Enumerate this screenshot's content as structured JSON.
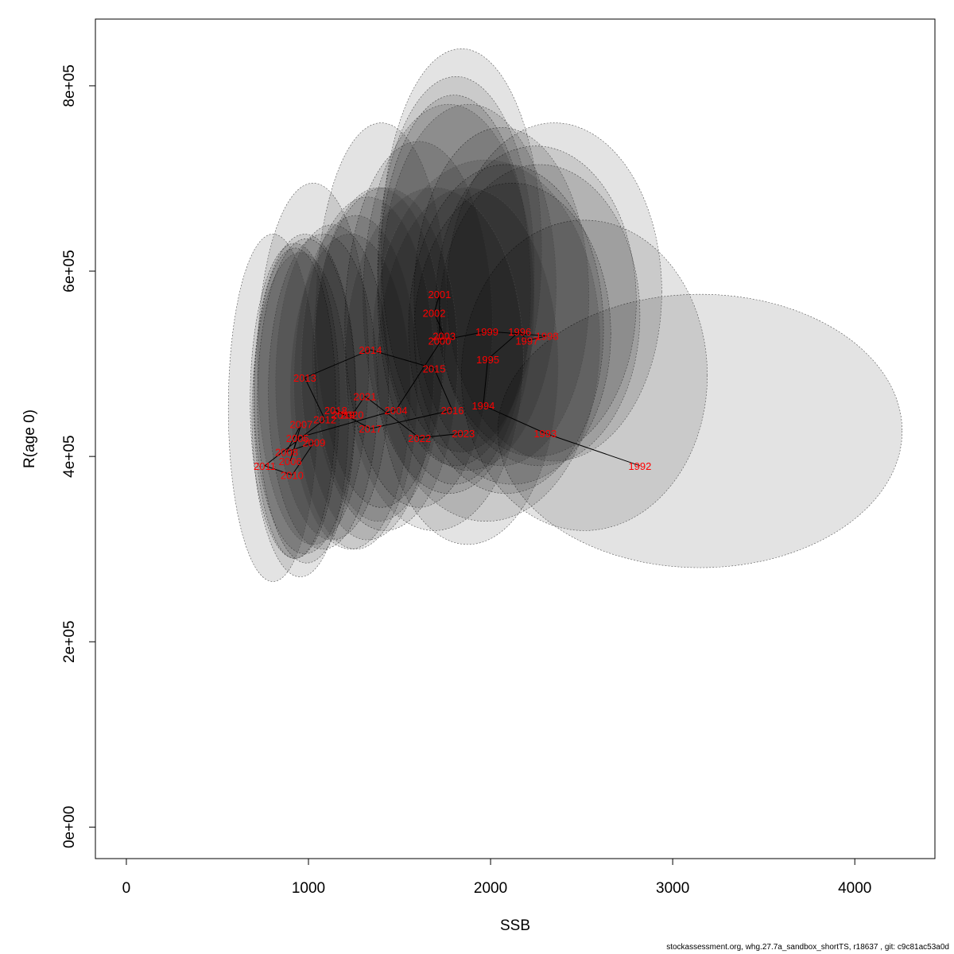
{
  "footer": "stockassessment.org, whg.27.7a_sandbox_shortTS, r18637 , git: c9c81ac53a0d",
  "colors": {
    "ellipse_fill": "#000000",
    "ellipse_stroke": "#555555",
    "label": "#ff0000",
    "trajectory": "#000000",
    "axis": "#000000"
  },
  "chart_data": {
    "type": "scatter",
    "xlabel": "SSB",
    "ylabel": "R(age 0)",
    "xlim": [
      -170,
      4440
    ],
    "ylim": [
      -34000,
      872000
    ],
    "x_ticks": [
      0,
      1000,
      2000,
      3000,
      4000
    ],
    "x_tick_labels": [
      "0",
      "1000",
      "2000",
      "3000",
      "4000"
    ],
    "y_ticks": [
      0,
      200000,
      400000,
      600000,
      800000
    ],
    "y_tick_labels": [
      "0e+00",
      "2e+05",
      "4e+05",
      "6e+05",
      "8e+05"
    ],
    "grid": false,
    "legend": "none",
    "points": [
      {
        "year": "1992",
        "ssb": 2820,
        "r": 390000,
        "ssb_ci": [
          2040,
          4260
        ],
        "r_ci": [
          280000,
          575000
        ]
      },
      {
        "year": "1993",
        "ssb": 2300,
        "r": 425000,
        "ssb_ci": [
          1840,
          3190
        ],
        "r_ci": [
          320000,
          655000
        ]
      },
      {
        "year": "1994",
        "ssb": 1960,
        "r": 455000,
        "ssb_ci": [
          1550,
          2620
        ],
        "r_ci": [
          360000,
          715000
        ]
      },
      {
        "year": "1995",
        "ssb": 1985,
        "r": 505000,
        "ssb_ci": [
          1580,
          2660
        ],
        "r_ci": [
          370000,
          695000
        ]
      },
      {
        "year": "1996",
        "ssb": 2160,
        "r": 535000,
        "ssb_ci": [
          1700,
          2800
        ],
        "r_ci": [
          400000,
          735000
        ]
      },
      {
        "year": "1997",
        "ssb": 2200,
        "r": 525000,
        "ssb_ci": [
          1720,
          2820
        ],
        "r_ci": [
          390000,
          715000
        ]
      },
      {
        "year": "1998",
        "ssb": 2310,
        "r": 530000,
        "ssb_ci": [
          1760,
          2940
        ],
        "r_ci": [
          395000,
          760000
        ]
      },
      {
        "year": "1999",
        "ssb": 1980,
        "r": 535000,
        "ssb_ci": [
          1580,
          2540
        ],
        "r_ci": [
          390000,
          755000
        ]
      },
      {
        "year": "2000",
        "ssb": 1720,
        "r": 525000,
        "ssb_ci": [
          1380,
          2220
        ],
        "r_ci": [
          370000,
          790000
        ]
      },
      {
        "year": "2001",
        "ssb": 1720,
        "r": 575000,
        "ssb_ci": [
          1400,
          2280
        ],
        "r_ci": [
          405000,
          840000
        ]
      },
      {
        "year": "2002",
        "ssb": 1690,
        "r": 555000,
        "ssb_ci": [
          1380,
          2240
        ],
        "r_ci": [
          390000,
          810000
        ]
      },
      {
        "year": "2003",
        "ssb": 1745,
        "r": 530000,
        "ssb_ci": [
          1400,
          2360
        ],
        "r_ci": [
          385000,
          780000
        ]
      },
      {
        "year": "2004",
        "ssb": 1480,
        "r": 450000,
        "ssb_ci": [
          1200,
          2010
        ],
        "r_ci": [
          345000,
          740000
        ]
      },
      {
        "year": "2005",
        "ssb": 940,
        "r": 420000,
        "ssb_ci": [
          720,
          1260
        ],
        "r_ci": [
          285000,
          635000
        ]
      },
      {
        "year": "2006",
        "ssb": 900,
        "r": 395000,
        "ssb_ci": [
          700,
          1150
        ],
        "r_ci": [
          290000,
          625000
        ]
      },
      {
        "year": "2007",
        "ssb": 960,
        "r": 435000,
        "ssb_ci": [
          700,
          1260
        ],
        "r_ci": [
          295000,
          640000
        ]
      },
      {
        "year": "2008",
        "ssb": 880,
        "r": 405000,
        "ssb_ci": [
          680,
          1170
        ],
        "r_ci": [
          290000,
          630000
        ]
      },
      {
        "year": "2009",
        "ssb": 1030,
        "r": 415000,
        "ssb_ci": [
          780,
          1380
        ],
        "r_ci": [
          300000,
          640000
        ]
      },
      {
        "year": "2010",
        "ssb": 910,
        "r": 380000,
        "ssb_ci": [
          690,
          1220
        ],
        "r_ci": [
          270000,
          620000
        ]
      },
      {
        "year": "2011",
        "ssb": 760,
        "r": 390000,
        "ssb_ci": [
          560,
          1050
        ],
        "r_ci": [
          265000,
          640000
        ]
      },
      {
        "year": "2012",
        "ssb": 1090,
        "r": 440000,
        "ssb_ci": [
          820,
          1440
        ],
        "r_ci": [
          310000,
          650000
        ]
      },
      {
        "year": "2013",
        "ssb": 980,
        "r": 485000,
        "ssb_ci": [
          720,
          1330
        ],
        "r_ci": [
          305000,
          695000
        ]
      },
      {
        "year": "2014",
        "ssb": 1340,
        "r": 515000,
        "ssb_ci": [
          1040,
          1760
        ],
        "r_ci": [
          345000,
          760000
        ]
      },
      {
        "year": "2015",
        "ssb": 1690,
        "r": 495000,
        "ssb_ci": [
          1300,
          2240
        ],
        "r_ci": [
          360000,
          780000
        ]
      },
      {
        "year": "2016",
        "ssb": 1790,
        "r": 450000,
        "ssb_ci": [
          1380,
          2370
        ],
        "r_ci": [
          305000,
          690000
        ]
      },
      {
        "year": "2017",
        "ssb": 1340,
        "r": 430000,
        "ssb_ci": [
          1020,
          1820
        ],
        "r_ci": [
          320000,
          690000
        ]
      },
      {
        "year": "2018",
        "ssb": 1150,
        "r": 450000,
        "ssb_ci": [
          900,
          1560
        ],
        "r_ci": [
          300000,
          640000
        ]
      },
      {
        "year": "2019",
        "ssb": 1190,
        "r": 445000,
        "ssb_ci": [
          920,
          1600
        ],
        "r_ci": [
          300000,
          660000
        ]
      },
      {
        "year": "2020",
        "ssb": 1240,
        "r": 445000,
        "ssb_ci": [
          960,
          1690
        ],
        "r_ci": [
          310000,
          680000
        ]
      },
      {
        "year": "2021",
        "ssb": 1310,
        "r": 465000,
        "ssb_ci": [
          1030,
          1740
        ],
        "r_ci": [
          330000,
          690000
        ]
      },
      {
        "year": "2022",
        "ssb": 1610,
        "r": 420000,
        "ssb_ci": [
          1200,
          2180
        ],
        "r_ci": [
          320000,
          690000
        ]
      },
      {
        "year": "2023",
        "ssb": 1850,
        "r": 425000,
        "ssb_ci": [
          1350,
          2600
        ],
        "r_ci": [
          330000,
          720000
        ]
      }
    ]
  }
}
